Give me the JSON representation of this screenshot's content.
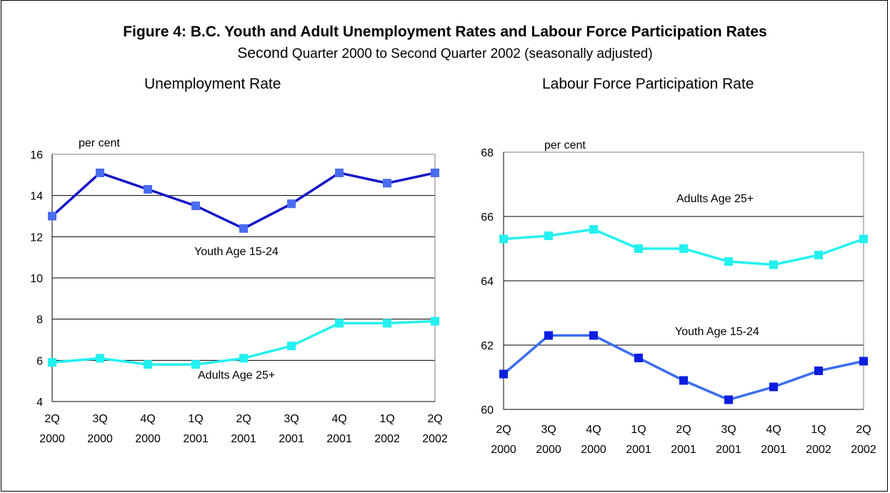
{
  "figure": {
    "title": "Figure 4: B.C. Youth and Adult Unemployment Rates and Labour Force Participation Rates",
    "subtitle_first_word": "Second",
    "subtitle_rest": " Quarter 2000 to Second Quarter 2002 (seasonally adjusted)"
  },
  "colors": {
    "youth_unemp": "#1414c8",
    "youth_unemp_marker": "#4a6cf0",
    "adults": "#24f0f0",
    "youth_lfp_line": "#3a6df0",
    "youth_lfp_marker": "#0b1ee0"
  },
  "chart_data": [
    {
      "type": "line",
      "title": "Unemployment Rate",
      "ylabel": "per cent",
      "xlabel": "",
      "categories": [
        [
          "2Q",
          "2000"
        ],
        [
          "3Q",
          "2000"
        ],
        [
          "4Q",
          "2000"
        ],
        [
          "1Q",
          "2001"
        ],
        [
          "2Q",
          "2001"
        ],
        [
          "3Q",
          "2001"
        ],
        [
          "4Q",
          "2001"
        ],
        [
          "1Q",
          "2002"
        ],
        [
          "2Q",
          "2002"
        ]
      ],
      "ylim": [
        4,
        16
      ],
      "yticks": [
        4,
        6,
        8,
        10,
        12,
        14,
        16
      ],
      "grid": true,
      "series": [
        {
          "name": "Youth Age 15-24",
          "values": [
            13.0,
            15.1,
            14.3,
            13.5,
            12.4,
            13.6,
            15.1,
            14.6,
            15.1
          ]
        },
        {
          "name": "Adults Age 25+",
          "values": [
            5.9,
            6.1,
            5.8,
            5.8,
            6.1,
            6.7,
            7.8,
            7.8,
            7.9
          ]
        }
      ]
    },
    {
      "type": "line",
      "title": "Labour Force Participation Rate",
      "ylabel": "per cent",
      "xlabel": "",
      "categories": [
        [
          "2Q",
          "2000"
        ],
        [
          "3Q",
          "2000"
        ],
        [
          "4Q",
          "2000"
        ],
        [
          "1Q",
          "2001"
        ],
        [
          "2Q",
          "2001"
        ],
        [
          "3Q",
          "2001"
        ],
        [
          "4Q",
          "2001"
        ],
        [
          "1Q",
          "2002"
        ],
        [
          "2Q",
          "2002"
        ]
      ],
      "ylim": [
        60,
        68
      ],
      "yticks": [
        60,
        62,
        64,
        66,
        68
      ],
      "grid": true,
      "series": [
        {
          "name": "Adults Age 25+",
          "values": [
            65.3,
            65.4,
            65.6,
            65.0,
            65.0,
            64.6,
            64.5,
            64.8,
            65.3
          ]
        },
        {
          "name": "Youth Age 15-24",
          "values": [
            61.1,
            62.3,
            62.3,
            61.6,
            60.9,
            60.3,
            60.7,
            61.2,
            61.5
          ]
        }
      ]
    }
  ]
}
